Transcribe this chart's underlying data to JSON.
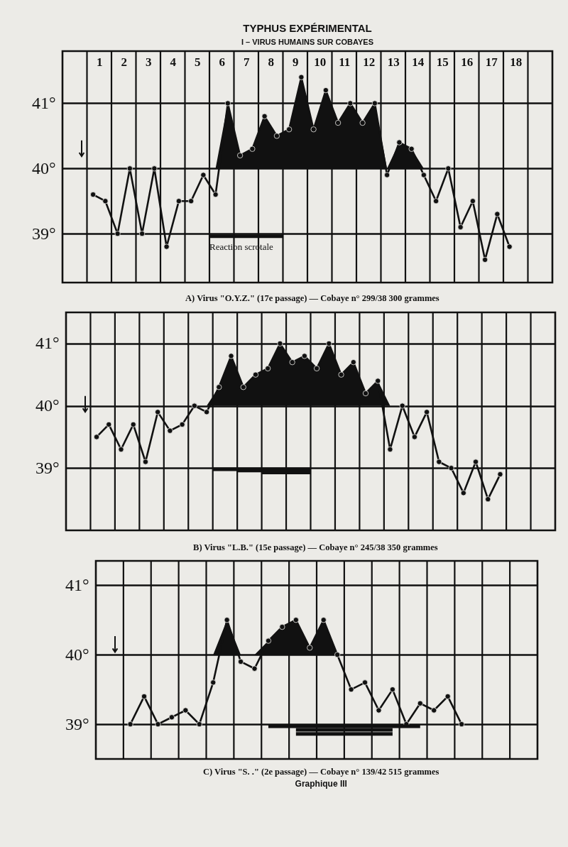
{
  "chart_data": [
    {
      "type": "line",
      "title": "TYPHUS EXPÉRIMENTAL",
      "subtitle": "I – VIRUS HUMAINS SUR COBAYES",
      "annotations": [
        "A) Virus \"O.Y.Z.\" (17e passage) — Cobaye n° 299/38  300 grammes",
        {
          "text": "Reaction scrotale",
          "x": 5.5,
          "y": 38.96
        }
      ],
      "xlim": [
        -0.5,
        19.5
      ],
      "xticks": [
        {
          "value": 0.5,
          "label": null
        },
        1,
        {
          "value": 1.5,
          "label": null
        },
        2,
        {
          "value": 2.5,
          "label": null
        },
        3,
        {
          "value": 3.5,
          "label": null
        },
        4,
        {
          "value": 4.5,
          "label": null
        },
        5,
        {
          "value": 5.5,
          "label": null
        },
        6,
        {
          "value": 6.5,
          "label": null
        },
        7,
        {
          "value": 7.5,
          "label": null
        },
        8,
        {
          "value": 8.5,
          "label": null
        },
        9,
        {
          "value": 9.5,
          "label": null
        },
        10,
        {
          "value": 10.5,
          "label": null
        },
        11,
        {
          "value": 11.5,
          "label": null
        },
        12,
        {
          "value": 12.5,
          "label": null
        },
        13,
        {
          "value": 13.5,
          "label": null
        },
        14,
        {
          "value": 14.5,
          "label": null
        },
        15,
        {
          "value": 15.5,
          "label": null
        },
        16,
        {
          "value": 16.5,
          "label": null
        },
        17,
        {
          "value": 17.5,
          "label": null
        },
        18,
        {
          "value": 18.5,
          "label": null
        }
      ],
      "ylim": [
        38.25,
        41.8
      ],
      "yticks": [
        {
          "value": 39,
          "label": "39°"
        },
        {
          "value": 40,
          "label": "40°"
        },
        {
          "value": 41,
          "label": "41°"
        }
      ],
      "grid": true,
      "marker": "circle",
      "series": [
        {
          "color": "#111111",
          "x": [
            0.75,
            1.25,
            1.75,
            2.25,
            2.75,
            3.25,
            3.75,
            4.25,
            4.75,
            5.25,
            5.75,
            6.25,
            6.75,
            7.25,
            7.75,
            8.25,
            8.75,
            9.25,
            9.75,
            10.25,
            10.75,
            11.25,
            11.75,
            12.25,
            12.75,
            13.25,
            13.75,
            14.25,
            14.75,
            15.25,
            15.75,
            16.25,
            16.75,
            17.25,
            17.75
          ],
          "values": [
            39.6,
            39.5,
            39.0,
            40.0,
            39.0,
            40.0,
            38.8,
            39.5,
            39.5,
            39.9,
            39.6,
            41.0,
            40.2,
            40.3,
            40.8,
            40.5,
            40.6,
            41.4,
            40.6,
            41.2,
            40.7,
            41.0,
            40.7,
            41.0,
            39.9,
            40.4,
            40.3,
            39.9,
            39.5,
            40.0,
            39.1,
            39.5,
            38.6,
            39.3,
            38.8
          ],
          "lower": [
            null,
            null,
            null,
            null,
            null,
            null,
            null,
            null,
            null,
            null,
            40,
            40,
            40,
            40,
            40,
            40,
            40,
            40,
            40,
            40,
            40,
            40,
            40,
            40,
            40,
            40,
            40,
            40,
            null,
            null,
            null,
            null,
            null,
            null,
            null
          ],
          "upper": [
            null,
            null,
            null,
            null,
            null,
            null,
            null,
            null,
            null,
            null,
            40,
            41.0,
            40.2,
            40.3,
            40.8,
            40.5,
            40.6,
            41.4,
            40.6,
            41.2,
            40.7,
            41.0,
            40.7,
            41.0,
            40,
            40.4,
            40.3,
            40,
            null,
            null,
            null,
            null,
            null,
            null,
            null
          ]
        },
        {
          "color": "#111111",
          "marker": "none",
          "x": [
            5.5,
            8.5
          ],
          "values": [
            38.96,
            38.96
          ]
        }
      ]
    },
    {
      "type": "line",
      "annotations": [
        "B) Virus \"L.B.\" (15e passage) — Cobaye n° 245/38  350 grammes"
      ],
      "xlim": [
        -0.5,
        19.5
      ],
      "xticks": [
        {
          "value": 0.5,
          "label": null
        },
        {
          "value": 1.5,
          "label": null
        },
        {
          "value": 2.5,
          "label": null
        },
        {
          "value": 3.5,
          "label": null
        },
        {
          "value": 4.5,
          "label": null
        },
        {
          "value": 5.5,
          "label": null
        },
        {
          "value": 6.5,
          "label": null
        },
        {
          "value": 7.5,
          "label": null
        },
        {
          "value": 8.5,
          "label": null
        },
        {
          "value": 9.5,
          "label": null
        },
        {
          "value": 10.5,
          "label": null
        },
        {
          "value": 11.5,
          "label": null
        },
        {
          "value": 12.5,
          "label": null
        },
        {
          "value": 13.5,
          "label": null
        },
        {
          "value": 14.5,
          "label": null
        },
        {
          "value": 15.5,
          "label": null
        },
        {
          "value": 16.5,
          "label": null
        },
        {
          "value": 17.5,
          "label": null
        },
        {
          "value": 18.5,
          "label": null
        }
      ],
      "ylim": [
        38.0,
        41.5
      ],
      "yticks": [
        {
          "value": 39,
          "label": "39°"
        },
        {
          "value": 40,
          "label": "40°"
        },
        {
          "value": 41,
          "label": "41°"
        }
      ],
      "tick_labels": "y",
      "grid": true,
      "marker": "circle",
      "series": [
        {
          "color": "#111111",
          "x": [
            0.75,
            1.25,
            1.75,
            2.25,
            2.75,
            3.25,
            3.75,
            4.25,
            4.75,
            5.25,
            5.75,
            6.25,
            6.75,
            7.25,
            7.75,
            8.25,
            8.75,
            9.25,
            9.75,
            10.25,
            10.75,
            11.25,
            11.75,
            12.25,
            12.75,
            13.25,
            13.75,
            14.25,
            14.75,
            15.25,
            15.75,
            16.25,
            16.75,
            17.25
          ],
          "values": [
            39.5,
            39.7,
            39.3,
            39.7,
            39.1,
            39.9,
            39.6,
            39.7,
            40.0,
            39.9,
            40.3,
            40.8,
            40.3,
            40.5,
            40.6,
            41.0,
            40.7,
            40.8,
            40.6,
            41.0,
            40.5,
            40.7,
            40.2,
            40.4,
            39.3,
            40.0,
            39.5,
            39.9,
            39.1,
            39.0,
            38.6,
            39.1,
            38.5,
            38.9
          ],
          "lower": [
            null,
            null,
            null,
            null,
            null,
            null,
            null,
            null,
            null,
            40,
            40,
            40,
            40,
            40,
            40,
            40,
            40,
            40,
            40,
            40,
            40,
            40,
            40,
            40,
            40,
            null,
            null,
            null,
            null,
            null,
            null,
            null,
            null,
            null
          ],
          "upper": [
            null,
            null,
            null,
            null,
            null,
            null,
            null,
            null,
            null,
            40,
            40.3,
            40.8,
            40.3,
            40.5,
            40.6,
            41.0,
            40.7,
            40.8,
            40.6,
            41.0,
            40.5,
            40.7,
            40.2,
            40.4,
            40,
            null,
            null,
            null,
            null,
            null,
            null,
            null,
            null,
            null
          ]
        },
        {
          "color": "#111111",
          "marker": "none",
          "x": [
            5.5,
            9.5
          ],
          "values": [
            38.98,
            38.98
          ]
        },
        {
          "color": "#111111",
          "marker": "none",
          "x": [
            6.5,
            9.5
          ],
          "values": [
            38.96,
            38.96
          ]
        },
        {
          "color": "#111111",
          "marker": "none",
          "x": [
            7.5,
            9.5
          ],
          "values": [
            38.93,
            38.93
          ]
        }
      ]
    },
    {
      "type": "line",
      "annotations": [
        "C) Virus \"S. .\" (2e passage) — Cobaye n° 139/42  515 grammes",
        "Graphique III"
      ],
      "categories": [
        null,
        null,
        null,
        null,
        null,
        null,
        null,
        null,
        null,
        null,
        null,
        null,
        null,
        null,
        null,
        null,
        null,
        null,
        null,
        null,
        null,
        null,
        null,
        null,
        null,
        null,
        null,
        null,
        null,
        null,
        null,
        null
      ],
      "ylim": [
        38.5,
        41.35
      ],
      "yticks": [
        {
          "value": 39,
          "label": "39°"
        },
        {
          "value": 40,
          "label": "40°"
        },
        {
          "value": 41,
          "label": "41°"
        }
      ],
      "tick_labels": "y",
      "grid": true,
      "marker": "circle",
      "series": [
        {
          "color": "#111111",
          "values": [
            null,
            null,
            39.0,
            39.4,
            39.0,
            39.1,
            39.2,
            39.0,
            39.6,
            40.5,
            39.9,
            39.8,
            40.2,
            40.4,
            40.5,
            40.1,
            40.5,
            40.0,
            39.5,
            39.6,
            39.2,
            39.5,
            39.0,
            39.3,
            39.2,
            39.4,
            39.0,
            null,
            null,
            null,
            null,
            null
          ],
          "lower": [
            null,
            null,
            null,
            null,
            null,
            null,
            null,
            null,
            40,
            40,
            40,
            40,
            40,
            40,
            40,
            40,
            40,
            40,
            null,
            null,
            null,
            null,
            null,
            null,
            null,
            null,
            null,
            null,
            null,
            null,
            null,
            null
          ],
          "upper": [
            null,
            null,
            null,
            null,
            null,
            null,
            null,
            null,
            40,
            40.5,
            40,
            40,
            40.2,
            40.4,
            40.5,
            40.1,
            40.5,
            40.0,
            null,
            null,
            null,
            null,
            null,
            null,
            null,
            null,
            null,
            null,
            null,
            null,
            null,
            null
          ]
        },
        {
          "color": "#111111",
          "marker": "none",
          "values": [
            null,
            null,
            null,
            null,
            null,
            null,
            null,
            null,
            null,
            null,
            null,
            null,
            38.97,
            38.97,
            38.97,
            38.97,
            38.97,
            38.97,
            38.97,
            38.97,
            38.97,
            38.97,
            38.97,
            38.97,
            null,
            null,
            null,
            null,
            null,
            null,
            null,
            null
          ]
        },
        {
          "color": "#111111",
          "marker": "none",
          "values": [
            null,
            null,
            null,
            null,
            null,
            null,
            null,
            null,
            null,
            null,
            null,
            null,
            null,
            null,
            38.92,
            38.92,
            38.92,
            38.92,
            38.92,
            38.92,
            38.92,
            38.92,
            null,
            null,
            null,
            null,
            null,
            null,
            null,
            null,
            null,
            null
          ]
        },
        {
          "color": "#111111",
          "marker": "none",
          "values": [
            null,
            null,
            null,
            null,
            null,
            null,
            null,
            null,
            null,
            null,
            null,
            null,
            null,
            null,
            38.86,
            38.86,
            38.86,
            38.86,
            38.86,
            38.86,
            38.86,
            38.86,
            null,
            null,
            null,
            null,
            null,
            null,
            null,
            null,
            null,
            null
          ]
        }
      ]
    }
  ]
}
